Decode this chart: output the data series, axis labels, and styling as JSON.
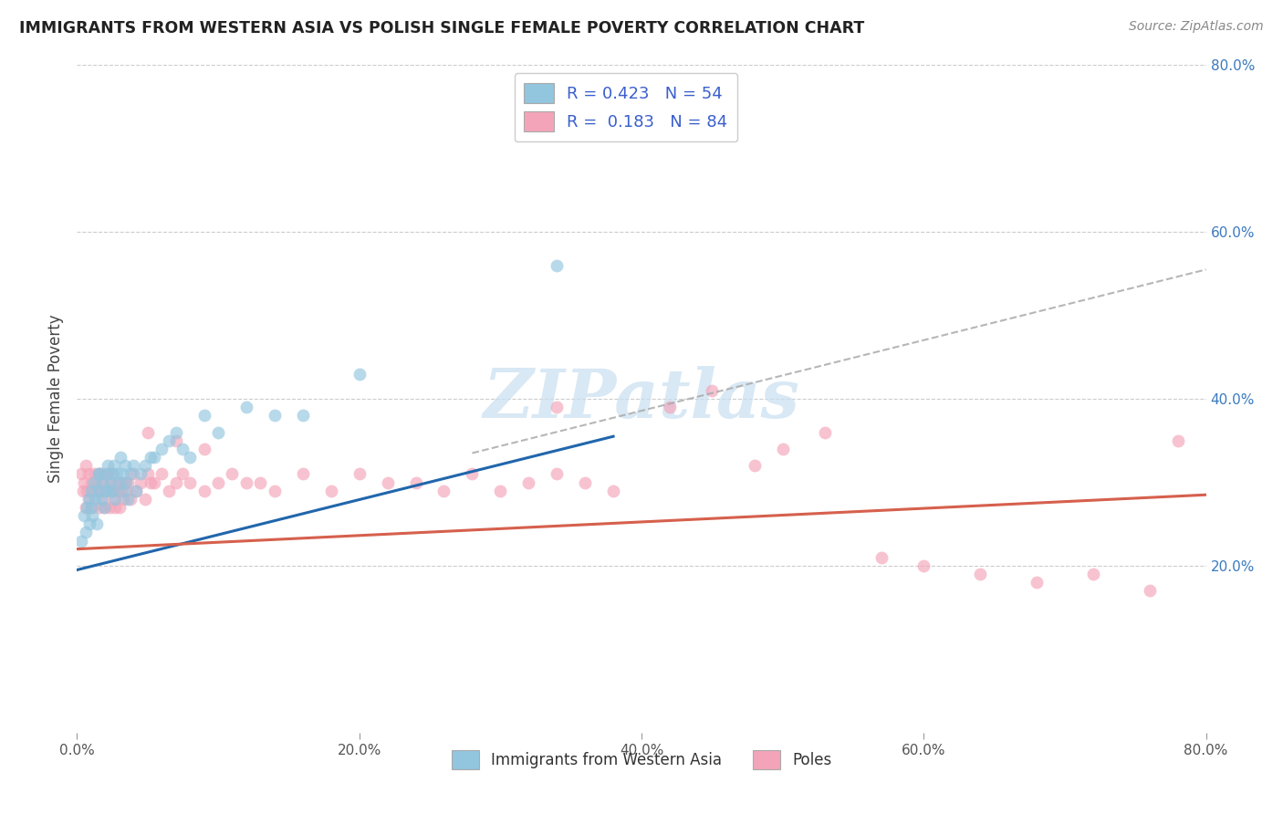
{
  "title": "IMMIGRANTS FROM WESTERN ASIA VS POLISH SINGLE FEMALE POVERTY CORRELATION CHART",
  "source": "Source: ZipAtlas.com",
  "ylabel": "Single Female Poverty",
  "xlim": [
    0.0,
    0.8
  ],
  "ylim": [
    0.0,
    0.8
  ],
  "xtick_labels": [
    "0.0%",
    "",
    "",
    "",
    "20.0%",
    "",
    "",
    "",
    "40.0%",
    "",
    "",
    "",
    "60.0%",
    "",
    "",
    "",
    "80.0%"
  ],
  "xtick_vals": [
    0.0,
    0.05,
    0.1,
    0.15,
    0.2,
    0.25,
    0.3,
    0.35,
    0.4,
    0.45,
    0.5,
    0.55,
    0.6,
    0.65,
    0.7,
    0.75,
    0.8
  ],
  "ytick_labels": [
    "20.0%",
    "40.0%",
    "60.0%",
    "80.0%"
  ],
  "ytick_vals": [
    0.2,
    0.4,
    0.6,
    0.8
  ],
  "legend1_r": "0.423",
  "legend1_n": "54",
  "legend2_r": "0.183",
  "legend2_n": "84",
  "legend_bottom_label1": "Immigrants from Western Asia",
  "legend_bottom_label2": "Poles",
  "blue_color": "#92c5de",
  "pink_color": "#f4a4b8",
  "blue_line_color": "#2166ac",
  "pink_line_color": "#d6604d",
  "dash_color": "#aaaaaa",
  "legend_text_color": "#3a5fcd",
  "right_tick_color": "#3a7abf",
  "watermark_color": "#c8dff0",
  "blue_scatter_x": [
    0.003,
    0.005,
    0.006,
    0.007,
    0.008,
    0.009,
    0.01,
    0.01,
    0.011,
    0.012,
    0.013,
    0.014,
    0.015,
    0.015,
    0.016,
    0.017,
    0.018,
    0.019,
    0.02,
    0.021,
    0.022,
    0.023,
    0.024,
    0.025,
    0.025,
    0.026,
    0.027,
    0.028,
    0.03,
    0.031,
    0.032,
    0.033,
    0.034,
    0.035,
    0.036,
    0.038,
    0.04,
    0.042,
    0.045,
    0.048,
    0.052,
    0.055,
    0.06,
    0.065,
    0.07,
    0.075,
    0.08,
    0.09,
    0.1,
    0.12,
    0.14,
    0.16,
    0.2,
    0.34
  ],
  "blue_scatter_y": [
    0.23,
    0.26,
    0.24,
    0.27,
    0.28,
    0.25,
    0.27,
    0.29,
    0.26,
    0.3,
    0.28,
    0.25,
    0.31,
    0.29,
    0.31,
    0.28,
    0.3,
    0.27,
    0.29,
    0.31,
    0.32,
    0.29,
    0.3,
    0.29,
    0.31,
    0.32,
    0.28,
    0.31,
    0.3,
    0.33,
    0.31,
    0.29,
    0.32,
    0.3,
    0.28,
    0.31,
    0.32,
    0.29,
    0.31,
    0.32,
    0.33,
    0.33,
    0.34,
    0.35,
    0.36,
    0.34,
    0.33,
    0.38,
    0.36,
    0.39,
    0.38,
    0.38,
    0.43,
    0.56
  ],
  "pink_scatter_x": [
    0.003,
    0.004,
    0.005,
    0.006,
    0.006,
    0.007,
    0.008,
    0.009,
    0.01,
    0.011,
    0.012,
    0.013,
    0.014,
    0.015,
    0.016,
    0.016,
    0.017,
    0.018,
    0.019,
    0.02,
    0.021,
    0.022,
    0.023,
    0.024,
    0.025,
    0.025,
    0.026,
    0.027,
    0.028,
    0.029,
    0.03,
    0.031,
    0.032,
    0.033,
    0.034,
    0.035,
    0.036,
    0.038,
    0.04,
    0.042,
    0.045,
    0.048,
    0.05,
    0.052,
    0.055,
    0.06,
    0.065,
    0.07,
    0.075,
    0.08,
    0.09,
    0.1,
    0.11,
    0.12,
    0.13,
    0.14,
    0.16,
    0.18,
    0.2,
    0.22,
    0.24,
    0.26,
    0.28,
    0.3,
    0.32,
    0.34,
    0.36,
    0.38,
    0.42,
    0.45,
    0.48,
    0.5,
    0.53,
    0.57,
    0.6,
    0.64,
    0.68,
    0.72,
    0.76,
    0.78,
    0.05,
    0.07,
    0.09,
    0.34
  ],
  "pink_scatter_y": [
    0.31,
    0.29,
    0.3,
    0.32,
    0.27,
    0.29,
    0.31,
    0.28,
    0.3,
    0.27,
    0.31,
    0.29,
    0.3,
    0.31,
    0.27,
    0.29,
    0.31,
    0.28,
    0.3,
    0.27,
    0.29,
    0.31,
    0.27,
    0.3,
    0.29,
    0.31,
    0.28,
    0.27,
    0.3,
    0.29,
    0.27,
    0.29,
    0.3,
    0.28,
    0.3,
    0.29,
    0.3,
    0.28,
    0.31,
    0.29,
    0.3,
    0.28,
    0.31,
    0.3,
    0.3,
    0.31,
    0.29,
    0.3,
    0.31,
    0.3,
    0.29,
    0.3,
    0.31,
    0.3,
    0.3,
    0.29,
    0.31,
    0.29,
    0.31,
    0.3,
    0.3,
    0.29,
    0.31,
    0.29,
    0.3,
    0.31,
    0.3,
    0.29,
    0.39,
    0.41,
    0.32,
    0.34,
    0.36,
    0.21,
    0.2,
    0.19,
    0.18,
    0.19,
    0.17,
    0.35,
    0.36,
    0.35,
    0.34,
    0.39
  ],
  "blue_line_x0": 0.0,
  "blue_line_y0": 0.195,
  "blue_line_x1": 0.38,
  "blue_line_y1": 0.355,
  "pink_line_x0": 0.0,
  "pink_line_y0": 0.22,
  "pink_line_x1": 0.8,
  "pink_line_y1": 0.285,
  "dash_line_x0": 0.28,
  "dash_line_y0": 0.335,
  "dash_line_x1": 0.8,
  "dash_line_y1": 0.555
}
